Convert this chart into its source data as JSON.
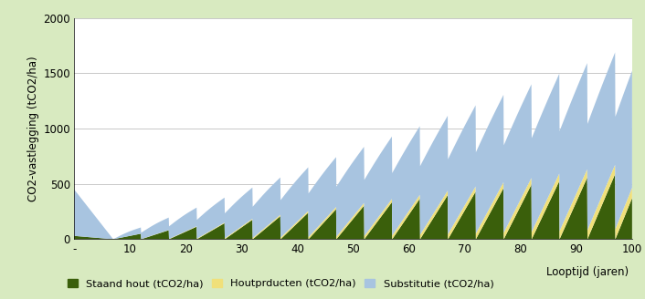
{
  "title": "",
  "ylabel": "CO2-vastlegging (tCO2/ha)",
  "xlabel": "Looptijd (jaren)",
  "xlim": [
    0,
    100
  ],
  "ylim": [
    0,
    2000
  ],
  "yticks": [
    0,
    500,
    1000,
    1500,
    2000
  ],
  "xticks": [
    0,
    10,
    20,
    30,
    40,
    50,
    60,
    70,
    80,
    90,
    100
  ],
  "xticklabels": [
    "-",
    "10",
    "20",
    "30",
    "40",
    "50",
    "60",
    "70",
    "80",
    "90",
    "100"
  ],
  "legend_labels": [
    "Staand hout (tCO2/ha)",
    "Houtprducten (tCO2/ha)",
    "Substitutie (tCO2/ha)"
  ],
  "colors": {
    "staand": "#3a5f0b",
    "hout": "#f0e07a",
    "substitutie": "#a8c4e0",
    "background": "#ffffff",
    "outer_bg": "#d8eac0",
    "grid": "#c8c8c8"
  }
}
